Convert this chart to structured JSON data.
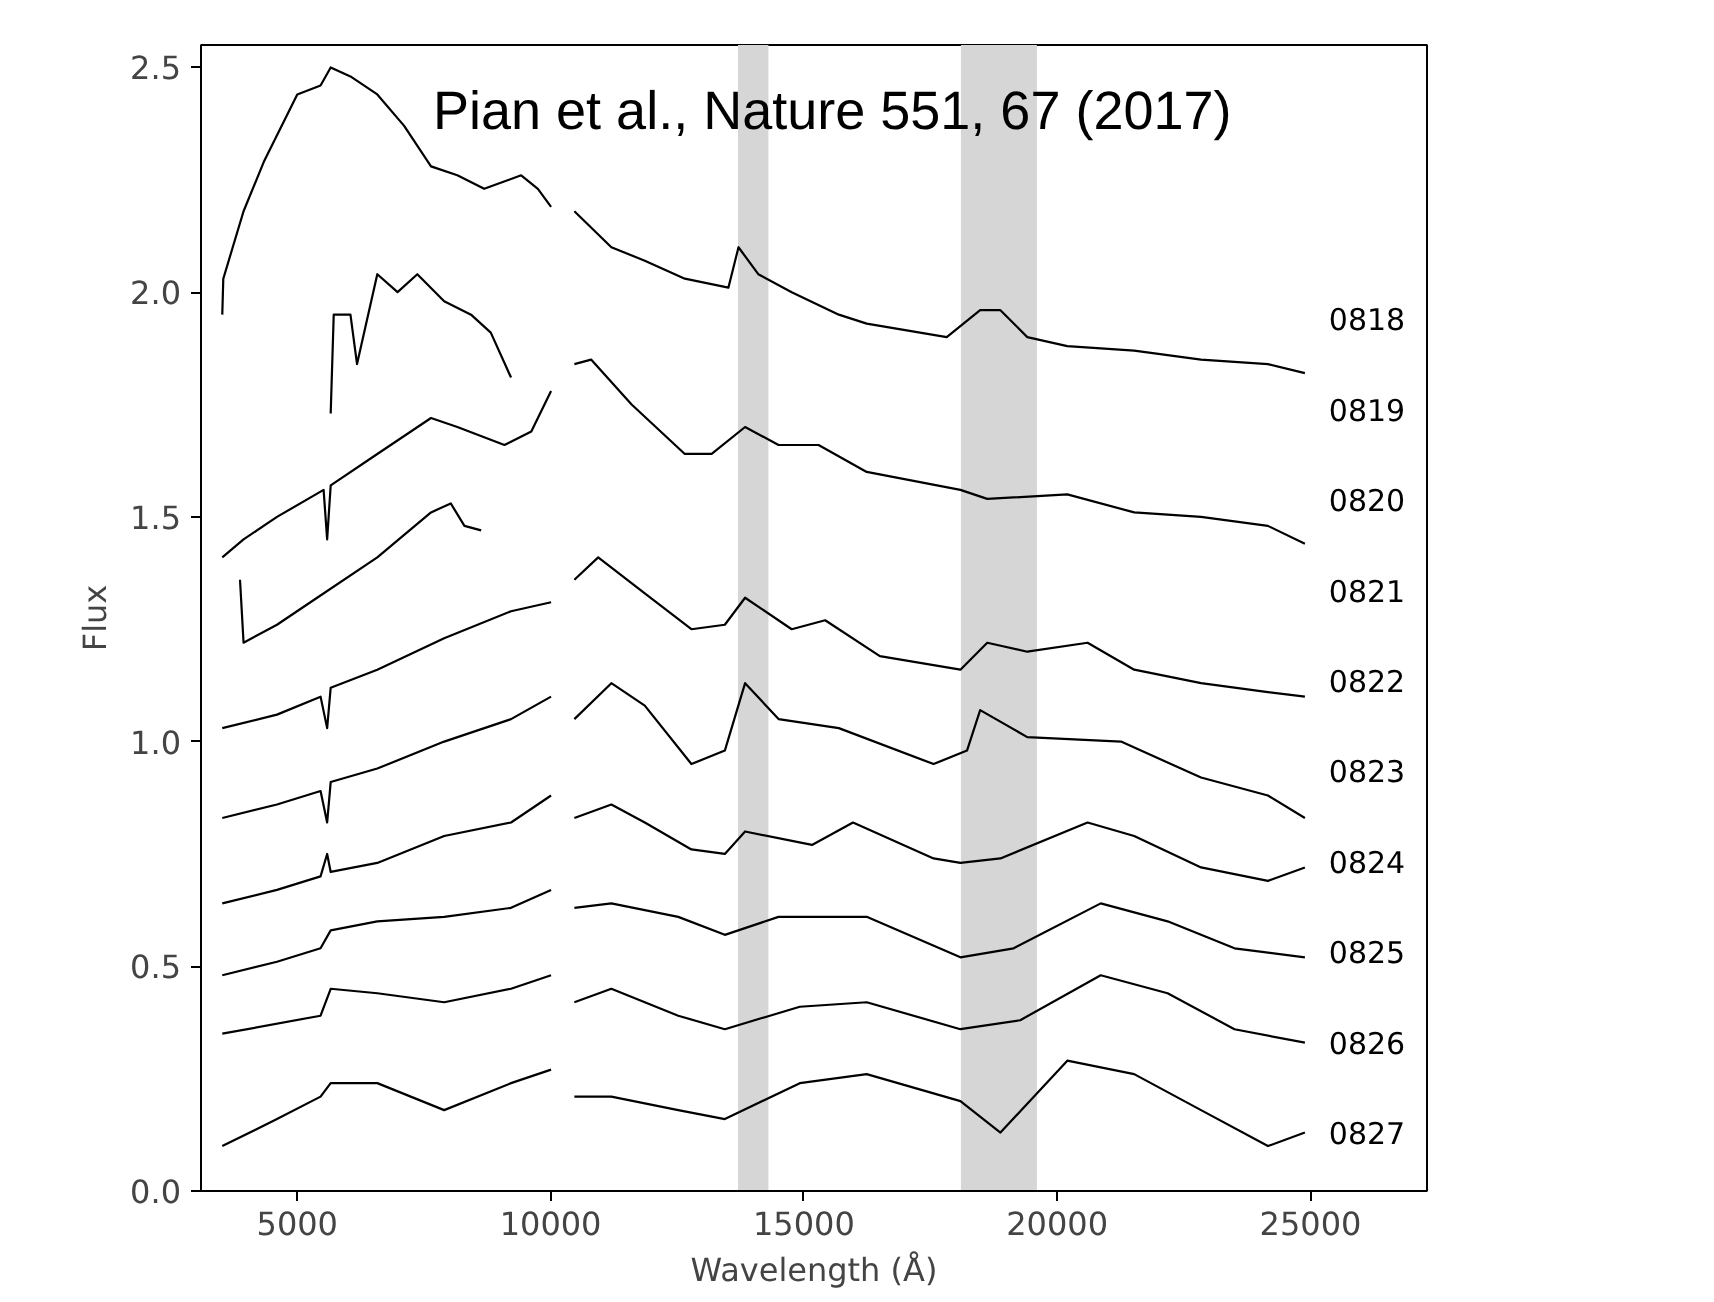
{
  "chart_data": {
    "type": "line",
    "xlabel": "Wavelength (Å)",
    "ylabel": "Flux",
    "xlim": [
      3100,
      27300
    ],
    "ylim": [
      0,
      2.55
    ],
    "xticks": [
      5000,
      10000,
      15000,
      20000,
      25000
    ],
    "yticks": [
      {
        "value": 0,
        "label": "0.0"
      },
      0.5,
      {
        "value": 1,
        "label": "1.0"
      },
      1.5,
      {
        "value": 2,
        "label": "2.0"
      },
      2.5
    ],
    "grid": false,
    "marker": "none",
    "line_style": "solid",
    "bands": [
      {
        "axis": "x",
        "from": 13700,
        "to": 14300,
        "color": "#d6d6d6"
      },
      {
        "axis": "x",
        "from": 18100,
        "to": 19600,
        "color": "#d6d6d6"
      }
    ],
    "annotations": [
      "Pian et al., Nature 551, 67 (2017)",
      "0818",
      "0819",
      "0820",
      "0821",
      "0822",
      "0823",
      "0824",
      "0825",
      "0826",
      "0827"
    ],
    "series": [
      {
        "color": "#000000",
        "x": [
          3520,
          3540,
          3940,
          4340,
          5000,
          5460,
          5660,
          6050,
          6580,
          7110,
          7640,
          8160,
          8690,
          9420,
          9750,
          10010,
          10200,
          10470,
          11200,
          11860,
          12650,
          13510,
          13710,
          14100,
          14760,
          15690,
          16240,
          17820,
          18480,
          18880,
          19410,
          20200,
          21520,
          22840,
          24160,
          24890
        ],
        "values": [
          1.95,
          2.03,
          2.18,
          2.29,
          2.44,
          2.46,
          2.5,
          2.48,
          2.44,
          2.37,
          2.28,
          2.26,
          2.23,
          2.26,
          2.23,
          2.19,
          null,
          2.18,
          2.1,
          2.07,
          2.03,
          2.01,
          2.1,
          2.04,
          2.0,
          1.95,
          1.93,
          1.9,
          1.96,
          1.96,
          1.9,
          1.88,
          1.87,
          1.85,
          1.84,
          1.82
        ]
      },
      {
        "color": "#000000",
        "x": [
          5660,
          5720,
          6050,
          6180,
          6580,
          6980,
          7370,
          7900,
          8430,
          8820,
          9220
        ],
        "values": [
          1.73,
          1.95,
          1.95,
          1.84,
          2.04,
          2.0,
          2.04,
          1.98,
          1.95,
          1.91,
          1.81
        ]
      },
      {
        "color": "#000000",
        "x": [
          3520,
          3940,
          4600,
          5520,
          5590,
          5660,
          6580,
          7640,
          8160,
          9090,
          9620,
          10010,
          10200,
          10470,
          10800,
          11600,
          12650,
          13180,
          13840,
          14500,
          15290,
          16240,
          18090,
          18620,
          20200,
          21520,
          22840,
          24160,
          24890
        ],
        "values": [
          1.41,
          1.45,
          1.5,
          1.56,
          1.45,
          1.57,
          1.64,
          1.72,
          1.7,
          1.66,
          1.69,
          1.78,
          null,
          1.84,
          1.85,
          1.75,
          1.64,
          1.64,
          1.7,
          1.66,
          1.66,
          1.6,
          1.56,
          1.54,
          1.55,
          1.51,
          1.5,
          1.48,
          1.44
        ]
      },
      {
        "color": "#000000",
        "x": [
          3870,
          3940,
          4600,
          5260,
          6580,
          7640,
          8030,
          8300,
          8630
        ],
        "values": [
          1.36,
          1.22,
          1.26,
          1.31,
          1.41,
          1.51,
          1.53,
          1.48,
          1.47
        ]
      },
      {
        "color": "#000000",
        "x": [
          3520,
          4600,
          5460,
          5590,
          5660,
          6580,
          7900,
          9220,
          10010,
          10200,
          10470,
          10940,
          11860,
          12780,
          13440,
          13840,
          14760,
          15420,
          16500,
          18090,
          18620,
          19410,
          20600,
          21520,
          22840,
          24160,
          24890
        ],
        "values": [
          1.03,
          1.06,
          1.1,
          1.03,
          1.12,
          1.16,
          1.23,
          1.29,
          1.31,
          null,
          1.36,
          1.41,
          1.33,
          1.25,
          1.26,
          1.32,
          1.25,
          1.27,
          1.19,
          1.16,
          1.22,
          1.2,
          1.22,
          1.16,
          1.13,
          1.11,
          1.1
        ]
      },
      {
        "color": "#000000",
        "x": [
          3520,
          4600,
          5460,
          5590,
          5660,
          6580,
          7900,
          9220,
          10010,
          10200,
          10470,
          11200,
          11860,
          12780,
          13440,
          13840,
          14500,
          15690,
          17560,
          18220,
          18480,
          19410,
          21260,
          22840,
          24160,
          24890
        ],
        "values": [
          0.83,
          0.86,
          0.89,
          0.82,
          0.91,
          0.94,
          1.0,
          1.05,
          1.1,
          null,
          1.05,
          1.13,
          1.08,
          0.95,
          0.98,
          1.13,
          1.05,
          1.03,
          0.95,
          0.98,
          1.07,
          1.01,
          1.0,
          0.92,
          0.88,
          0.83
        ]
      },
      {
        "color": "#000000",
        "x": [
          3520,
          4600,
          5460,
          5590,
          5660,
          6580,
          7900,
          9220,
          10010,
          10200,
          10470,
          11200,
          11860,
          12780,
          13440,
          13840,
          15160,
          15970,
          17560,
          18090,
          18880,
          20600,
          21520,
          22840,
          24160,
          24890
        ],
        "values": [
          0.64,
          0.67,
          0.7,
          0.75,
          0.71,
          0.73,
          0.79,
          0.82,
          0.88,
          null,
          0.83,
          0.86,
          0.82,
          0.76,
          0.75,
          0.8,
          0.77,
          0.82,
          0.74,
          0.73,
          0.74,
          0.82,
          0.79,
          0.72,
          0.69,
          0.72
        ]
      },
      {
        "color": "#000000",
        "x": [
          3520,
          4600,
          5460,
          5660,
          6580,
          7900,
          9220,
          10010,
          10200,
          10470,
          11200,
          12520,
          13440,
          14500,
          15690,
          16240,
          18090,
          19140,
          20860,
          22180,
          23500,
          24890
        ],
        "values": [
          0.48,
          0.51,
          0.54,
          0.58,
          0.6,
          0.61,
          0.63,
          0.67,
          null,
          0.63,
          0.64,
          0.61,
          0.57,
          0.61,
          0.61,
          0.61,
          0.52,
          0.54,
          0.64,
          0.6,
          0.54,
          0.52
        ]
      },
      {
        "color": "#000000",
        "x": [
          3520,
          5460,
          5660,
          6580,
          7900,
          9220,
          10010,
          10200,
          10470,
          11200,
          12520,
          13440,
          14920,
          16240,
          18090,
          19270,
          20860,
          22180,
          23500,
          24890
        ],
        "values": [
          0.35,
          0.39,
          0.45,
          0.44,
          0.42,
          0.45,
          0.48,
          null,
          0.42,
          0.45,
          0.39,
          0.36,
          0.41,
          0.42,
          0.36,
          0.38,
          0.48,
          0.44,
          0.36,
          0.33
        ]
      },
      {
        "color": "#000000",
        "x": [
          3520,
          4600,
          5460,
          5660,
          6580,
          7900,
          9220,
          10010,
          10200,
          10470,
          11200,
          12520,
          13440,
          14920,
          16240,
          18090,
          18880,
          20200,
          21520,
          22840,
          24160,
          24890
        ],
        "values": [
          0.1,
          0.16,
          0.21,
          0.24,
          0.24,
          0.18,
          0.24,
          0.27,
          null,
          0.21,
          0.21,
          0.18,
          0.16,
          0.24,
          0.26,
          0.2,
          0.13,
          0.29,
          0.26,
          0.18,
          0.1,
          0.13
        ]
      }
    ]
  }
}
